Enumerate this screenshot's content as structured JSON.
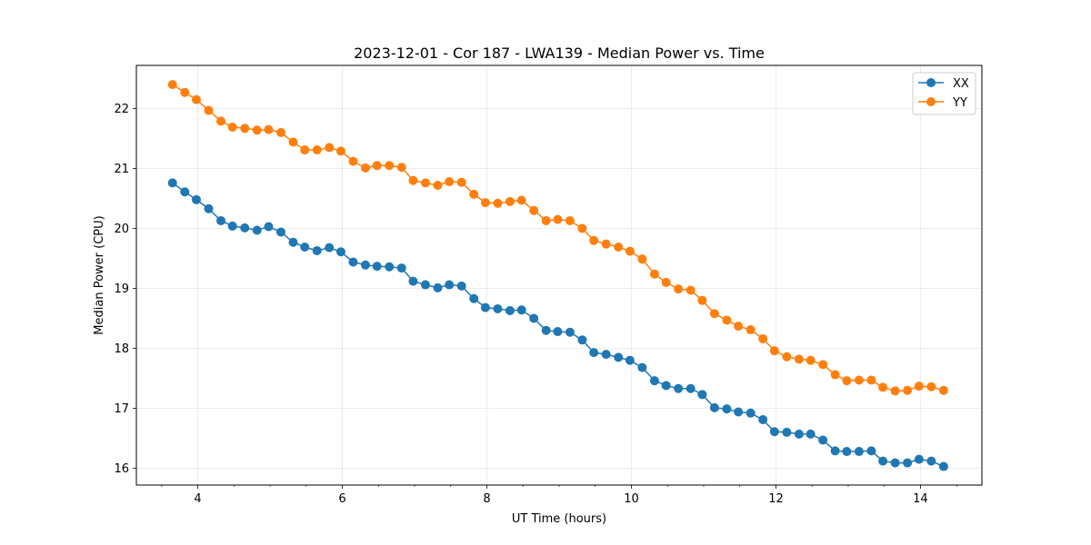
{
  "chart_data": {
    "type": "line",
    "title": "2023-12-01 - Cor 187 - LWA139 - Median Power vs. Time",
    "xlabel": "UT Time (hours)",
    "ylabel": "Median Power (CPU)",
    "xlim": [
      3.15,
      14.85
    ],
    "ylim": [
      15.72,
      22.72
    ],
    "xticks": [
      4,
      6,
      8,
      10,
      12,
      14
    ],
    "yticks": [
      16,
      17,
      18,
      19,
      20,
      21,
      22
    ],
    "grid": true,
    "legend_position": "top-right",
    "x": [
      3.65,
      3.82,
      3.98,
      4.15,
      4.32,
      4.48,
      4.65,
      4.82,
      4.98,
      5.15,
      5.32,
      5.48,
      5.65,
      5.82,
      5.98,
      6.15,
      6.32,
      6.48,
      6.65,
      6.82,
      6.98,
      7.15,
      7.32,
      7.48,
      7.65,
      7.82,
      7.98,
      8.15,
      8.32,
      8.48,
      8.65,
      8.82,
      8.98,
      9.15,
      9.32,
      9.48,
      9.65,
      9.82,
      9.98,
      10.15,
      10.32,
      10.48,
      10.65,
      10.82,
      10.98,
      11.15,
      11.32,
      11.48,
      11.65,
      11.82,
      11.98,
      12.15,
      12.32,
      12.48,
      12.65,
      12.82,
      12.98,
      13.15,
      13.32,
      13.48,
      13.65,
      13.82,
      13.98,
      14.15,
      14.32
    ],
    "series": [
      {
        "name": "XX",
        "color": "#1f77b4",
        "values": [
          20.76,
          20.61,
          20.48,
          20.33,
          20.13,
          20.04,
          20.01,
          19.97,
          20.03,
          19.94,
          19.77,
          19.69,
          19.63,
          19.68,
          19.61,
          19.44,
          19.39,
          19.37,
          19.36,
          19.34,
          19.12,
          19.06,
          19.01,
          19.06,
          19.04,
          18.83,
          18.68,
          18.66,
          18.63,
          18.64,
          18.5,
          18.3,
          18.28,
          18.27,
          18.14,
          17.93,
          17.9,
          17.85,
          17.8,
          17.68,
          17.46,
          17.38,
          17.33,
          17.33,
          17.23,
          17.01,
          16.99,
          16.94,
          16.92,
          16.81,
          16.61,
          16.6,
          16.57,
          16.57,
          16.47,
          16.29,
          16.28,
          16.28,
          16.29,
          16.12,
          16.09,
          16.09,
          16.15,
          16.12,
          16.03
        ]
      },
      {
        "name": "YY",
        "color": "#ff7f0e",
        "values": [
          22.4,
          22.27,
          22.15,
          21.97,
          21.79,
          21.69,
          21.67,
          21.64,
          21.65,
          21.6,
          21.44,
          21.31,
          21.31,
          21.35,
          21.29,
          21.12,
          21.01,
          21.05,
          21.05,
          21.02,
          20.8,
          20.76,
          20.72,
          20.78,
          20.77,
          20.57,
          20.43,
          20.42,
          20.45,
          20.47,
          20.3,
          20.13,
          20.15,
          20.13,
          20.0,
          19.8,
          19.74,
          19.69,
          19.62,
          19.49,
          19.24,
          19.1,
          18.99,
          18.97,
          18.8,
          18.58,
          18.47,
          18.37,
          18.31,
          18.16,
          17.96,
          17.86,
          17.82,
          17.8,
          17.73,
          17.56,
          17.46,
          17.47,
          17.47,
          17.35,
          17.29,
          17.3,
          17.37,
          17.36,
          17.3
        ]
      }
    ]
  }
}
